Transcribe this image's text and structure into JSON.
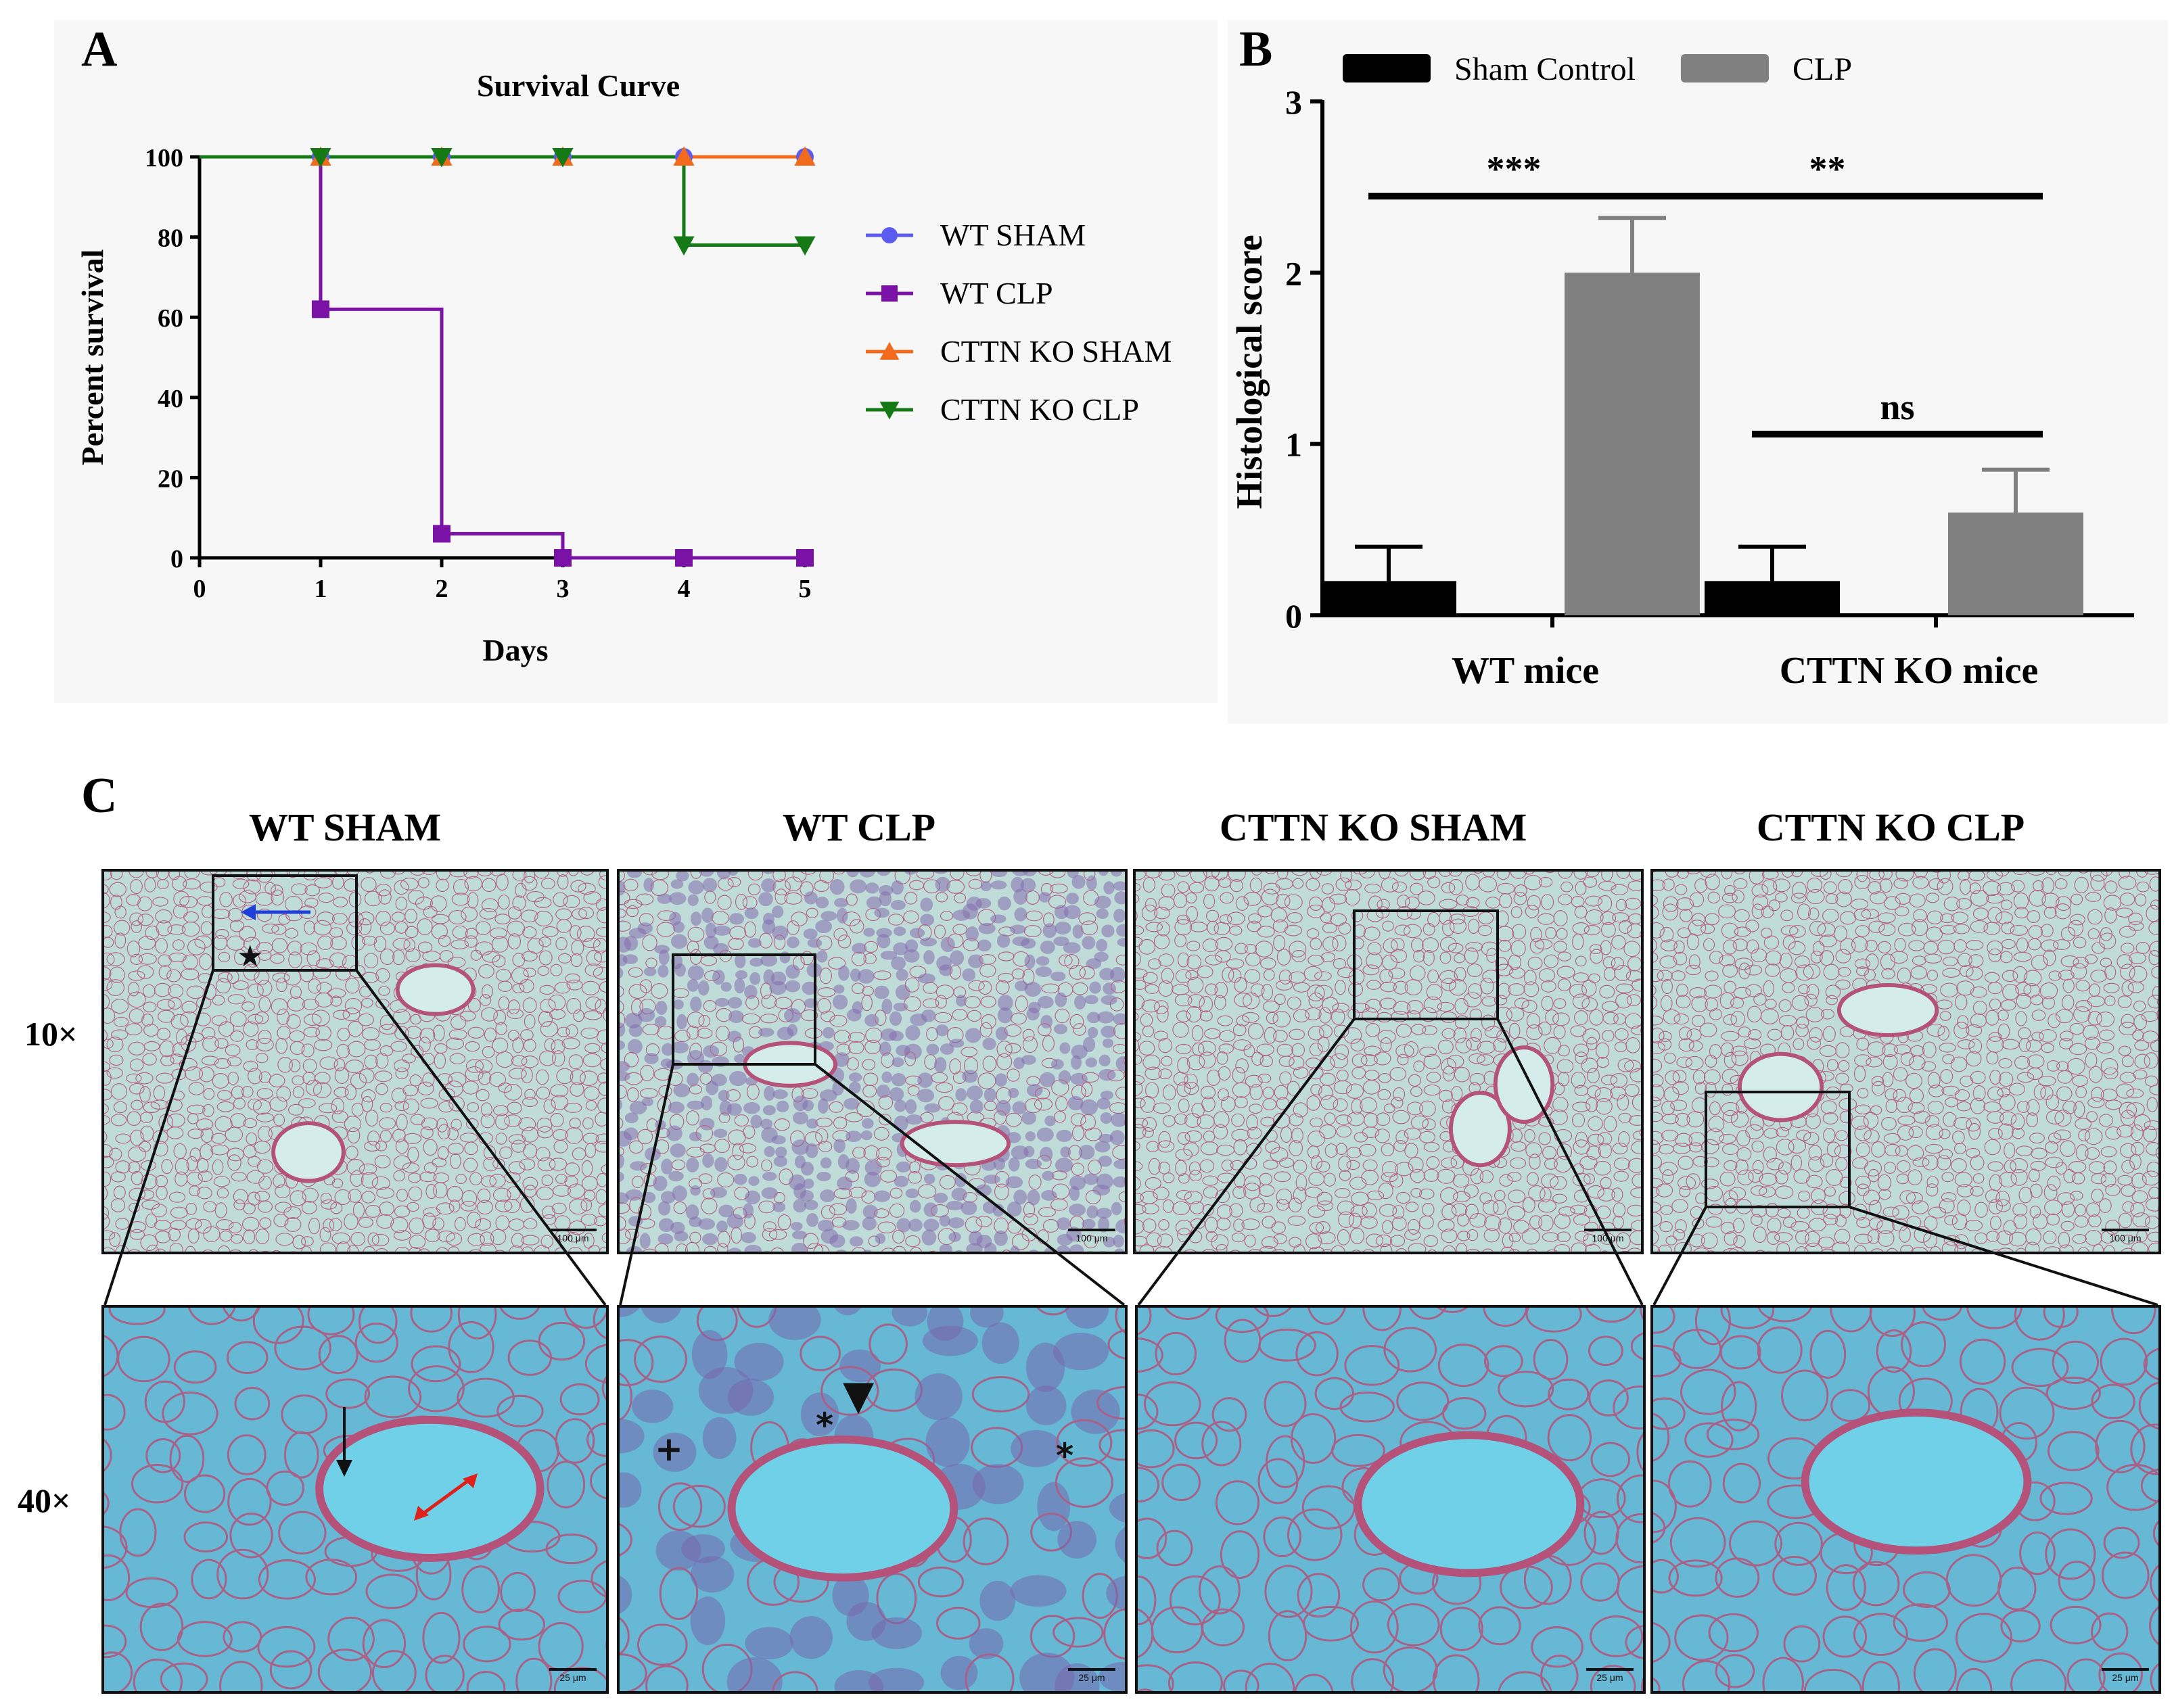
{
  "panels": {
    "a": "A",
    "b": "B",
    "c": "C"
  },
  "chart_data": [
    {
      "type": "line",
      "subtype": "kaplan-meier step",
      "title": "Survival Curve",
      "xlabel": "Days",
      "ylabel": "Percent survival",
      "xlim": [
        0,
        5
      ],
      "ylim": [
        0,
        100
      ],
      "xticks": [
        0,
        1,
        2,
        3,
        4,
        5
      ],
      "yticks": [
        0,
        20,
        40,
        60,
        80,
        100
      ],
      "legend_position": "right",
      "series": [
        {
          "name": "WT SHAM",
          "color": "#5b5bf0",
          "marker": "circle",
          "x": [
            0,
            1,
            2,
            3,
            4,
            5
          ],
          "y": [
            100,
            100,
            100,
            100,
            100,
            100
          ]
        },
        {
          "name": "WT CLP",
          "color": "#7a12a6",
          "marker": "square",
          "x": [
            0,
            1,
            2,
            3,
            4,
            5
          ],
          "y": [
            100,
            62,
            6,
            0,
            0,
            0
          ]
        },
        {
          "name": "CTTN KO SHAM",
          "color": "#f26b1d",
          "marker": "triangle-up",
          "x": [
            0,
            1,
            2,
            3,
            4,
            5
          ],
          "y": [
            100,
            100,
            100,
            100,
            100,
            100
          ]
        },
        {
          "name": "CTTN KO CLP",
          "color": "#157a15",
          "marker": "triangle-down",
          "x": [
            0,
            1,
            2,
            3,
            4,
            5
          ],
          "y": [
            100,
            100,
            100,
            100,
            78,
            78
          ]
        }
      ]
    },
    {
      "type": "bar",
      "title": "",
      "xlabel": "",
      "ylabel": "Histological score",
      "ylim": [
        0,
        3
      ],
      "yticks": [
        0,
        1,
        2,
        3
      ],
      "categories": [
        "WT mice",
        "CTTN KO mice"
      ],
      "legend_position": "top",
      "series": [
        {
          "name": "Sham Control",
          "color": "#000000",
          "values": [
            0.2,
            0.2
          ],
          "errors": [
            0.2,
            0.2
          ]
        },
        {
          "name": "CLP",
          "color": "#808080",
          "values": [
            2.0,
            0.6
          ],
          "errors": [
            0.32,
            0.25
          ]
        }
      ],
      "significance": [
        {
          "label": "***",
          "from": "WT mice / Sham Control",
          "to": "WT mice / CLP"
        },
        {
          "label": "**",
          "from": "WT mice / CLP",
          "to": "CTTN KO mice / CLP"
        },
        {
          "label": "ns",
          "from": "CTTN KO mice / Sham Control",
          "to": "CTTN KO mice / CLP"
        }
      ]
    }
  ],
  "histology": {
    "columns": [
      "WT SHAM",
      "WT CLP",
      "CTTN KO SHAM",
      "CTTN KO CLP"
    ],
    "rows": [
      "10×",
      "40×"
    ],
    "scale_10x": "100 μm",
    "scale_40x": "25 μm",
    "annotations": {
      "star": "★",
      "asterisk": "*",
      "plus": "+",
      "arrowhead": "▼"
    },
    "colors": {
      "tissue_10x": "#c0dcd8",
      "tissue_40x": "#66b8d4",
      "stain": "#b4527a"
    }
  }
}
